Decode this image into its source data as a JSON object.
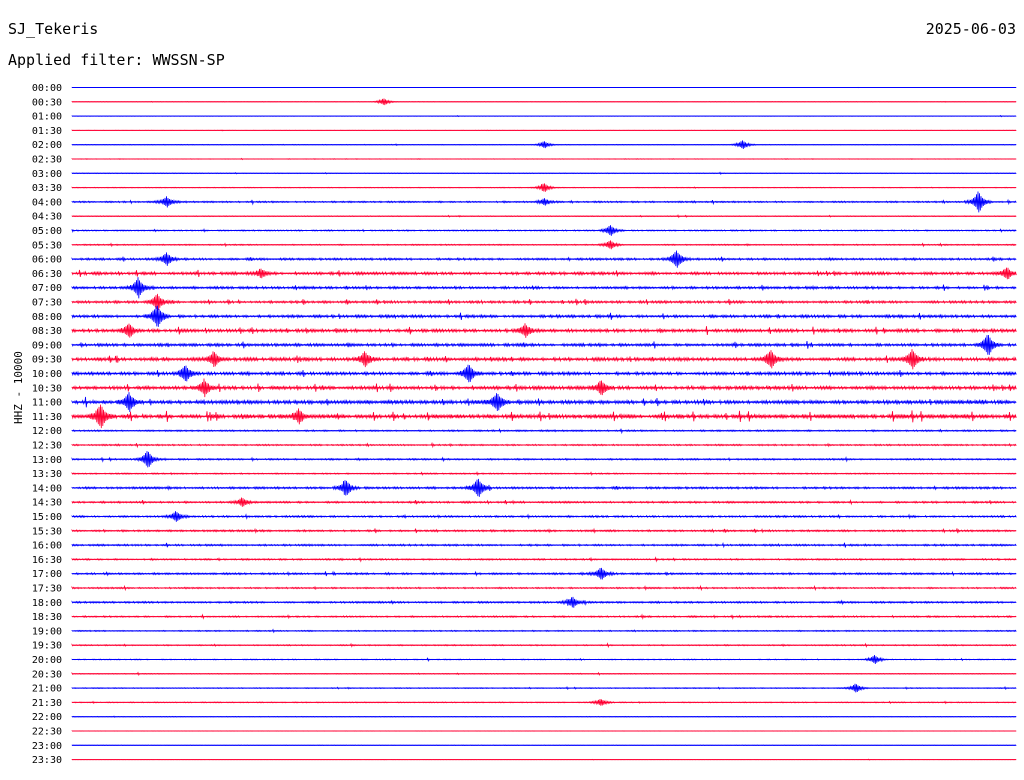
{
  "header": {
    "station": "SJ_Tekeris",
    "date": "2025-06-03",
    "filter_label": "Applied filter: WWSSN-SP",
    "channel_label": "HHZ - 10000"
  },
  "colors": {
    "even_rows": "#0000ff",
    "odd_rows": "#ff0033"
  },
  "chart_data": {
    "type": "line",
    "title": "SJ_Tekeris",
    "subtitle": "Applied filter: WWSSN-SP",
    "ylabel": "HHZ - 10000",
    "row_labels": [
      "00:00",
      "00:30",
      "01:00",
      "01:30",
      "02:00",
      "02:30",
      "03:00",
      "03:30",
      "04:00",
      "04:30",
      "05:00",
      "05:30",
      "06:00",
      "06:30",
      "07:00",
      "07:30",
      "08:00",
      "08:30",
      "09:00",
      "09:30",
      "10:00",
      "10:30",
      "11:00",
      "11:30",
      "12:00",
      "12:30",
      "13:00",
      "13:30",
      "14:00",
      "14:30",
      "15:00",
      "15:30",
      "16:00",
      "16:30",
      "17:00",
      "17:30",
      "18:00",
      "18:30",
      "19:00",
      "19:30",
      "20:00",
      "20:30",
      "21:00",
      "21:30",
      "22:00",
      "22:30",
      "23:00",
      "23:30"
    ],
    "row_color_pattern": [
      "blue",
      "red"
    ],
    "activity_level": [
      0.05,
      0.06,
      0.08,
      0.08,
      0.1,
      0.1,
      0.12,
      0.12,
      0.25,
      0.15,
      0.2,
      0.2,
      0.35,
      0.45,
      0.4,
      0.4,
      0.45,
      0.5,
      0.45,
      0.55,
      0.5,
      0.55,
      0.6,
      0.7,
      0.25,
      0.25,
      0.25,
      0.2,
      0.35,
      0.3,
      0.3,
      0.3,
      0.3,
      0.25,
      0.3,
      0.25,
      0.3,
      0.25,
      0.2,
      0.2,
      0.15,
      0.15,
      0.15,
      0.15,
      0.1,
      0.08,
      0.06,
      0.05
    ],
    "events": [
      {
        "row": 1,
        "t": 0.33,
        "amp": 0.4
      },
      {
        "row": 4,
        "t": 0.5,
        "amp": 0.4
      },
      {
        "row": 4,
        "t": 0.71,
        "amp": 0.5
      },
      {
        "row": 7,
        "t": 0.5,
        "amp": 0.5
      },
      {
        "row": 8,
        "t": 0.1,
        "amp": 0.6
      },
      {
        "row": 8,
        "t": 0.5,
        "amp": 0.4
      },
      {
        "row": 8,
        "t": 0.96,
        "amp": 1.2
      },
      {
        "row": 10,
        "t": 0.57,
        "amp": 0.6
      },
      {
        "row": 11,
        "t": 0.57,
        "amp": 0.5
      },
      {
        "row": 12,
        "t": 0.1,
        "amp": 0.7
      },
      {
        "row": 12,
        "t": 0.64,
        "amp": 1.0
      },
      {
        "row": 13,
        "t": 0.2,
        "amp": 0.5
      },
      {
        "row": 13,
        "t": 0.99,
        "amp": 0.6
      },
      {
        "row": 14,
        "t": 0.07,
        "amp": 1.1
      },
      {
        "row": 15,
        "t": 0.09,
        "amp": 0.9
      },
      {
        "row": 16,
        "t": 0.09,
        "amp": 1.3
      },
      {
        "row": 17,
        "t": 0.06,
        "amp": 0.8
      },
      {
        "row": 17,
        "t": 0.48,
        "amp": 0.7
      },
      {
        "row": 18,
        "t": 0.97,
        "amp": 1.2
      },
      {
        "row": 19,
        "t": 0.15,
        "amp": 0.8
      },
      {
        "row": 19,
        "t": 0.31,
        "amp": 0.8
      },
      {
        "row": 19,
        "t": 0.74,
        "amp": 1.0
      },
      {
        "row": 19,
        "t": 0.89,
        "amp": 1.1
      },
      {
        "row": 20,
        "t": 0.12,
        "amp": 0.9
      },
      {
        "row": 20,
        "t": 0.42,
        "amp": 1.0
      },
      {
        "row": 21,
        "t": 0.14,
        "amp": 0.9
      },
      {
        "row": 21,
        "t": 0.56,
        "amp": 0.8
      },
      {
        "row": 22,
        "t": 0.06,
        "amp": 1.0
      },
      {
        "row": 22,
        "t": 0.45,
        "amp": 1.0
      },
      {
        "row": 23,
        "t": 0.03,
        "amp": 1.3
      },
      {
        "row": 23,
        "t": 0.24,
        "amp": 0.7
      },
      {
        "row": 26,
        "t": 0.08,
        "amp": 1.0
      },
      {
        "row": 28,
        "t": 0.29,
        "amp": 0.9
      },
      {
        "row": 28,
        "t": 0.43,
        "amp": 1.1
      },
      {
        "row": 29,
        "t": 0.18,
        "amp": 0.5
      },
      {
        "row": 30,
        "t": 0.11,
        "amp": 0.6
      },
      {
        "row": 34,
        "t": 0.56,
        "amp": 0.7
      },
      {
        "row": 36,
        "t": 0.53,
        "amp": 0.6
      },
      {
        "row": 40,
        "t": 0.85,
        "amp": 0.5
      },
      {
        "row": 42,
        "t": 0.83,
        "amp": 0.5
      },
      {
        "row": 43,
        "t": 0.56,
        "amp": 0.4
      }
    ]
  }
}
